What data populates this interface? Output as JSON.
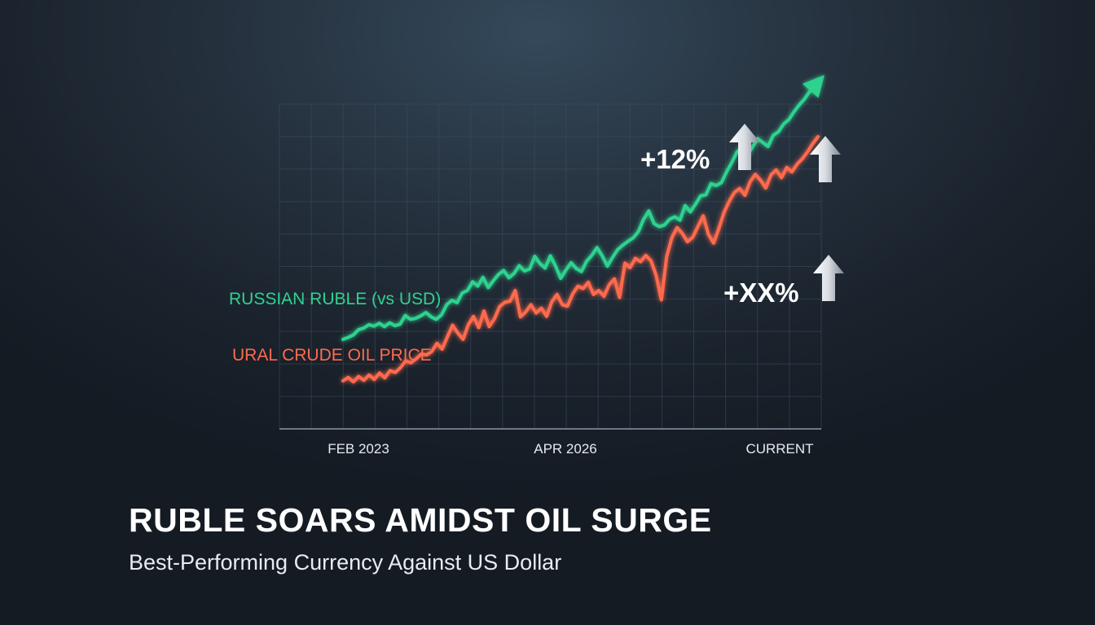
{
  "headline": "RUBLE SOARS AMIDST OIL SURGE",
  "subheadline": "Best-Performing Currency Against US Dollar",
  "chart_data": {
    "type": "line",
    "title": "",
    "xlabel": "",
    "ylabel": "",
    "x_tick_labels": [
      "FEB 2023",
      "APR 2026",
      "CURRENT"
    ],
    "grid": true,
    "legend": "inline labels left of lines",
    "series": [
      {
        "name": "RUSSIAN RUBLE (vs USD)",
        "color": "#2fd28f",
        "values": [
          0.5,
          0.9,
          1.4,
          2.5,
          2.8,
          3.5,
          3.2,
          3.8,
          3.1,
          3.9,
          3.3,
          3.6,
          5.4,
          4.6,
          4.8,
          5.3,
          6.0,
          5.1,
          4.6,
          5.5,
          7.6,
          8.5,
          8.0,
          10.0,
          10.5,
          12.3,
          11.4,
          13.2,
          11.1,
          12.5,
          13.8,
          14.6,
          13.1,
          14.0,
          15.6,
          14.5,
          14.9,
          17.5,
          16.0,
          15.1,
          17.6,
          15.5,
          13.0,
          14.7,
          16.2,
          15.0,
          14.4,
          16.5,
          17.7,
          19.3,
          17.6,
          15.5,
          17.3,
          18.9,
          19.8,
          20.6,
          21.3,
          22.6,
          25.1,
          26.8,
          24.2,
          23.6,
          23.9,
          25.1,
          25.6,
          24.9,
          27.9,
          26.6,
          28.2,
          29.9,
          30.1,
          32.4,
          32.0,
          32.6,
          34.8,
          36.7,
          38.9,
          39.8,
          38.2,
          39.9,
          41.6,
          40.8,
          40.0,
          42.3,
          43.0,
          44.6,
          45.5,
          47.1,
          48.5,
          49.7,
          51.2,
          52.4
        ],
        "callout": "+12%"
      },
      {
        "name": "URAL CRUDE OIL PRICE",
        "color": "#ff6a4d",
        "values": [
          -8.0,
          -7.3,
          -8.2,
          -7.1,
          -7.9,
          -6.8,
          -7.7,
          -6.4,
          -7.4,
          -5.9,
          -6.3,
          -5.3,
          -3.9,
          -4.3,
          -3.5,
          -2.5,
          -2.7,
          -2.0,
          -0.3,
          -1.5,
          1.0,
          3.4,
          1.8,
          0.5,
          3.5,
          5.2,
          2.9,
          6.3,
          3.1,
          4.7,
          7.2,
          8.1,
          8.3,
          10.5,
          5.1,
          6.1,
          7.6,
          5.9,
          6.9,
          5.2,
          8.2,
          9.7,
          7.6,
          7.3,
          9.8,
          11.4,
          10.9,
          12.2,
          9.7,
          10.5,
          9.3,
          11.7,
          12.9,
          9.1,
          16.1,
          15.2,
          17.1,
          16.4,
          17.7,
          16.6,
          13.6,
          8.6,
          17.4,
          21.3,
          23.4,
          22.2,
          20.5,
          21.4,
          23.6,
          25.8,
          22.0,
          20.2,
          23.2,
          26.5,
          28.8,
          30.6,
          31.4,
          30.0,
          32.8,
          34.3,
          33.1,
          31.5,
          34.2,
          35.2,
          33.6,
          35.7,
          34.8,
          36.4,
          37.5,
          38.9,
          40.6,
          42.0
        ],
        "callout": "+XX%"
      }
    ]
  }
}
